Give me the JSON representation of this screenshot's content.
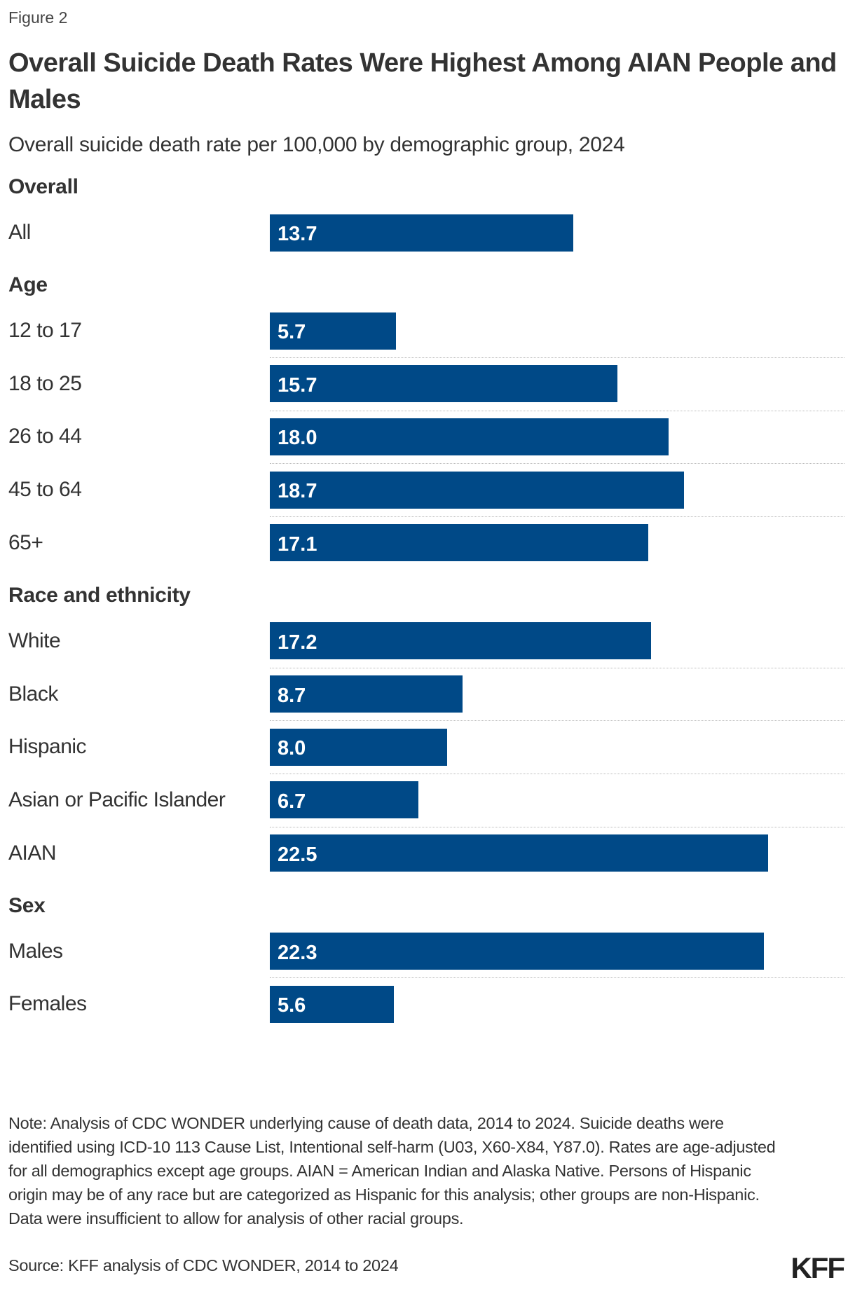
{
  "figure_label": "Figure 2",
  "logo": "KFF",
  "colors": {
    "bar": "#004987",
    "value_text": "#ffffff"
  },
  "chart_data": {
    "type": "bar",
    "orientation": "horizontal",
    "title": "Overall Suicide Death Rates Were Highest Among AIAN People and Males",
    "subtitle": "Overall suicide death rate per 100,000 by demographic group, 2024",
    "xlim": [
      0,
      22.5
    ],
    "grid": false,
    "groups": [
      {
        "name": "Overall",
        "categories": [
          "All"
        ],
        "values": [
          13.7
        ],
        "labels": [
          "13.7"
        ]
      },
      {
        "name": "Age",
        "categories": [
          "12 to 17",
          "18 to 25",
          "26 to 44",
          "45 to 64",
          "65+"
        ],
        "values": [
          5.7,
          15.7,
          18.0,
          18.7,
          17.1
        ],
        "labels": [
          "5.7",
          "15.7",
          "18.0",
          "18.7",
          "17.1"
        ]
      },
      {
        "name": "Race and ethnicity",
        "categories": [
          "White",
          "Black",
          "Hispanic",
          "Asian or Pacific Islander",
          "AIAN"
        ],
        "values": [
          17.2,
          8.7,
          8.0,
          6.7,
          22.5
        ],
        "labels": [
          "17.2",
          "8.7",
          "8.0",
          "6.7",
          "22.5"
        ]
      },
      {
        "name": "Sex",
        "categories": [
          "Males",
          "Females"
        ],
        "values": [
          22.3,
          5.6
        ],
        "labels": [
          "22.3",
          "5.6"
        ]
      }
    ]
  },
  "note": "Note: Analysis of CDC WONDER underlying cause of death data, 2014 to 2024. Suicide deaths were identified using ICD-10 113 Cause List, Intentional self-harm (U03, X60-X84, Y87.0). Rates are age-adjusted for all demographics except age groups. AIAN = American Indian and Alaska Native. Persons of Hispanic origin may be of any race but are categorized as Hispanic for this analysis; other groups are non-Hispanic. Data were insufficient to allow for analysis of other racial groups.",
  "source": "Source: KFF analysis of CDC WONDER, 2014 to 2024"
}
